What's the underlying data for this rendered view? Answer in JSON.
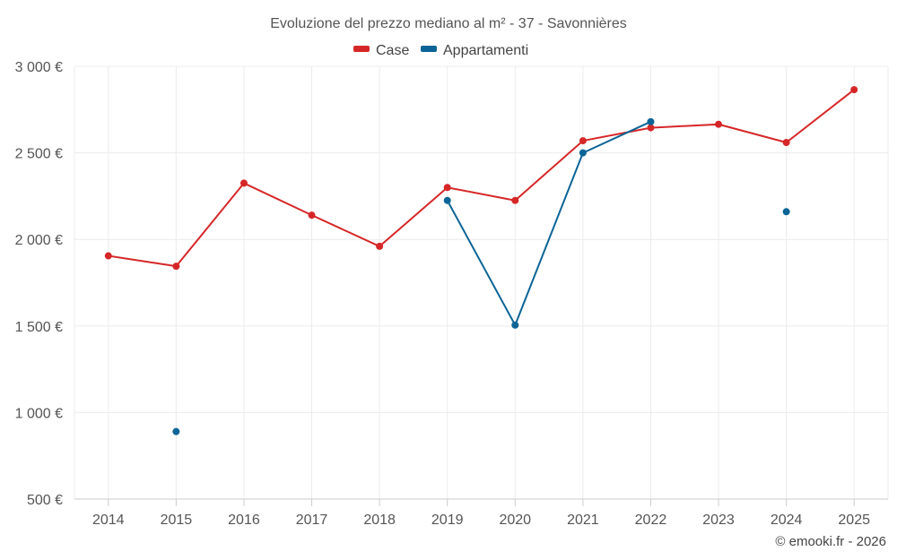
{
  "chart_data": {
    "type": "line",
    "title": "Evoluzione del prezzo mediano al m² - 37 - Savonnières",
    "categories": [
      "2014",
      "2015",
      "2016",
      "2017",
      "2018",
      "2019",
      "2020",
      "2021",
      "2022",
      "2023",
      "2024",
      "2025"
    ],
    "series": [
      {
        "name": "Case",
        "color": "#d62728",
        "values": [
          1905,
          1845,
          2325,
          2140,
          1960,
          2300,
          2225,
          2570,
          2645,
          2665,
          2560,
          2865
        ]
      },
      {
        "name": "Appartamenti",
        "color": "#0b6496",
        "values": [
          null,
          890,
          null,
          null,
          null,
          2225,
          1505,
          2500,
          2680,
          null,
          2160,
          null
        ]
      }
    ],
    "ylim": [
      500,
      3000
    ],
    "yticks": [
      500,
      1000,
      1500,
      2000,
      2500,
      3000
    ],
    "ytick_labels": [
      "500 €",
      "1 000 €",
      "1 500 €",
      "2 000 €",
      "2 500 €",
      "3 000 €"
    ],
    "xlabel": "",
    "ylabel": "",
    "grid": true,
    "legend_position": "top-center"
  },
  "credit": "© emooki.fr - 2026"
}
